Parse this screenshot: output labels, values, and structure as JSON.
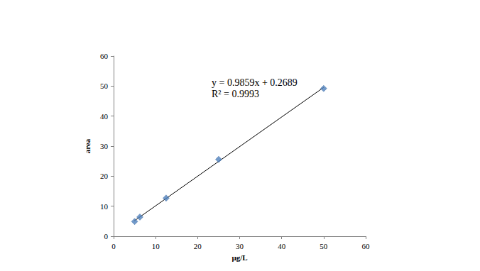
{
  "chart_data": {
    "type": "scatter",
    "x": [
      5,
      6.25,
      12.5,
      25,
      50
    ],
    "values": [
      4.9,
      6.4,
      12.7,
      25.6,
      49.2
    ],
    "color": "#4f81bd",
    "marker": "diamond",
    "xlim": [
      0,
      60
    ],
    "xticks": [
      0,
      10,
      20,
      30,
      40,
      50,
      60
    ],
    "ylim": [
      0,
      60
    ],
    "yticks": [
      0,
      10,
      20,
      30,
      40,
      50,
      60
    ],
    "xlabel": "µg/L",
    "ylabel": "area",
    "grid": false,
    "annotations": [
      "y = 0.9859x + 0.2689",
      "R² = 0.9993"
    ],
    "trendline": {
      "x": [
        4.9,
        50
      ],
      "values": [
        5.1,
        49.56
      ],
      "color": "#000000"
    }
  }
}
